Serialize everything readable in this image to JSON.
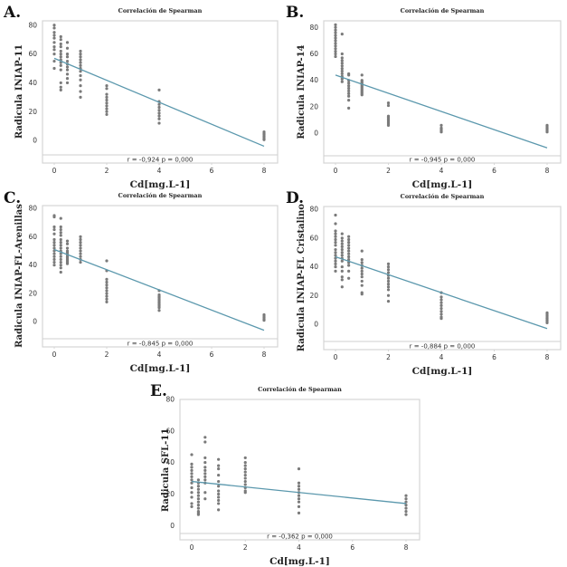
{
  "chart_data": [
    {
      "id": "A",
      "type": "scatter",
      "panel_label": "A.",
      "title": "Correlación de Spearman",
      "xlabel": "Cd[mg.L-1]",
      "ylabel": "Radicula INIAP-11",
      "xticks": [
        0,
        2,
        4,
        6,
        8
      ],
      "yticks": [
        0,
        20,
        40,
        60,
        80
      ],
      "xlim": [
        -0.35,
        8.35
      ],
      "ylim": [
        -10,
        83
      ],
      "statistic": "r = -0,924  p = 0,000",
      "fit_line": {
        "x": [
          0,
          8
        ],
        "y": [
          57,
          -4
        ]
      },
      "points": [
        {
          "x": 0,
          "y": [
            80,
            78,
            75,
            73,
            71,
            68,
            65,
            63,
            60,
            55,
            50
          ]
        },
        {
          "x": 0.25,
          "y": [
            72,
            70,
            67,
            65,
            62,
            60,
            58,
            56,
            54,
            52,
            49,
            40,
            37,
            35
          ]
        },
        {
          "x": 0.5,
          "y": [
            68,
            64,
            60,
            58,
            55,
            53,
            51,
            49,
            46,
            43,
            40
          ]
        },
        {
          "x": 1,
          "y": [
            62,
            60,
            58,
            56,
            54,
            52,
            50,
            48,
            45,
            42,
            38,
            34,
            30
          ]
        },
        {
          "x": 2,
          "y": [
            38,
            36,
            32,
            30,
            28,
            26,
            24,
            22,
            20,
            18
          ]
        },
        {
          "x": 4,
          "y": [
            35,
            27,
            25,
            23,
            21,
            19,
            17,
            15,
            12
          ]
        },
        {
          "x": 8,
          "y": [
            6,
            5,
            4,
            3,
            2,
            1,
            0.5
          ]
        }
      ]
    },
    {
      "id": "B",
      "type": "scatter",
      "panel_label": "B.",
      "title": "Correlación de Spearman",
      "xlabel": "Cd[mg.L-1]",
      "ylabel": "Radicula INIAP-14",
      "xticks": [
        0,
        2,
        4,
        6,
        8
      ],
      "yticks": [
        0,
        20,
        40,
        60,
        80
      ],
      "xlim": [
        -0.35,
        8.35
      ],
      "ylim": [
        -17,
        85
      ],
      "statistic": "r = -0,945  p = 0,000",
      "fit_line": {
        "x": [
          0,
          8
        ],
        "y": [
          44,
          -11
        ]
      },
      "points": [
        {
          "x": 0,
          "y": [
            82,
            80,
            78,
            76,
            74,
            72,
            70,
            68,
            66,
            64,
            62,
            60,
            58
          ]
        },
        {
          "x": 0.25,
          "y": [
            75,
            60,
            57,
            55,
            53,
            51,
            49,
            47,
            45,
            43,
            41,
            39
          ]
        },
        {
          "x": 0.5,
          "y": [
            45,
            44,
            40,
            38,
            36,
            34,
            32,
            30,
            28,
            25,
            19
          ]
        },
        {
          "x": 1,
          "y": [
            44,
            40,
            39,
            38,
            37,
            36,
            35,
            34,
            33,
            32,
            31,
            30,
            29
          ]
        },
        {
          "x": 2,
          "y": [
            23,
            21,
            13,
            12,
            11,
            10,
            9,
            8,
            7,
            6
          ]
        },
        {
          "x": 4,
          "y": [
            6,
            4,
            3,
            2,
            1
          ]
        },
        {
          "x": 8,
          "y": [
            6,
            5,
            4,
            3,
            2,
            1
          ]
        }
      ]
    },
    {
      "id": "C",
      "type": "scatter",
      "panel_label": "C.",
      "title": "Correlación de Spearman",
      "xlabel": "Cd[mg.L-1]",
      "ylabel": "Radicula INIAP-FL-Arenillas",
      "xticks": [
        0,
        2,
        4,
        6,
        8
      ],
      "yticks": [
        0,
        20,
        40,
        60,
        80
      ],
      "xlim": [
        -0.35,
        8.35
      ],
      "ylim": [
        -12,
        82
      ],
      "statistic": "r = -0,845  p = 0,000",
      "fit_line": {
        "x": [
          0,
          8
        ],
        "y": [
          51,
          -6
        ]
      },
      "points": [
        {
          "x": 0,
          "y": [
            75,
            74,
            67,
            65,
            62,
            58,
            56,
            54,
            52,
            50,
            48,
            46,
            44,
            42,
            40
          ]
        },
        {
          "x": 0.25,
          "y": [
            73,
            67,
            65,
            63,
            61,
            58,
            56,
            54,
            52,
            50,
            48,
            46,
            44,
            42,
            40,
            38,
            35
          ]
        },
        {
          "x": 0.5,
          "y": [
            57,
            55,
            52,
            50,
            49,
            48,
            47,
            46,
            45,
            44,
            43,
            42,
            41
          ]
        },
        {
          "x": 1,
          "y": [
            60,
            58,
            56,
            54,
            52,
            50,
            48,
            46,
            44,
            42
          ]
        },
        {
          "x": 2,
          "y": [
            43,
            36,
            30,
            28,
            26,
            24,
            22,
            20,
            18,
            16,
            14
          ]
        },
        {
          "x": 4,
          "y": [
            22,
            19,
            18,
            17,
            16,
            15,
            14,
            13,
            12,
            11,
            10,
            8
          ]
        },
        {
          "x": 8,
          "y": [
            5,
            4,
            3,
            2,
            1
          ]
        }
      ]
    },
    {
      "id": "D",
      "type": "scatter",
      "panel_label": "D.",
      "title": "Correlación de Spearman",
      "xlabel": "Cd[mg.L-1]",
      "ylabel": "Radicula INIAP-FL Cristalino",
      "xticks": [
        0,
        2,
        4,
        6,
        8
      ],
      "yticks": [
        0,
        20,
        40,
        60,
        80
      ],
      "xlim": [
        -0.35,
        8.35
      ],
      "ylim": [
        -12,
        82
      ],
      "statistic": "r = -0,884  p = 0,000",
      "fit_line": {
        "x": [
          0,
          8
        ],
        "y": [
          47,
          -3
        ]
      },
      "points": [
        {
          "x": 0,
          "y": [
            76,
            70,
            65,
            63,
            61,
            59,
            57,
            55,
            52,
            50,
            48,
            46,
            44,
            42,
            40,
            37
          ]
        },
        {
          "x": 0.25,
          "y": [
            63,
            60,
            58,
            56,
            54,
            52,
            50,
            48,
            46,
            44,
            40,
            37,
            33,
            31,
            26
          ]
        },
        {
          "x": 0.5,
          "y": [
            61,
            59,
            57,
            55,
            53,
            51,
            49,
            47,
            45,
            43,
            41,
            37,
            32
          ]
        },
        {
          "x": 1,
          "y": [
            51,
            45,
            43,
            41,
            39,
            37,
            35,
            33,
            30,
            27,
            22,
            21
          ]
        },
        {
          "x": 2,
          "y": [
            42,
            40,
            38,
            36,
            34,
            32,
            30,
            28,
            26,
            24,
            20,
            16
          ]
        },
        {
          "x": 4,
          "y": [
            22,
            19,
            17,
            15,
            13,
            11,
            9,
            7,
            5,
            4
          ]
        },
        {
          "x": 8,
          "y": [
            8,
            7,
            6,
            5,
            4,
            3,
            2,
            1
          ]
        }
      ]
    },
    {
      "id": "E",
      "type": "scatter",
      "panel_label": "E.",
      "title": "Correlación de Spearman",
      "xlabel": "Cd[mg.L-1]",
      "ylabel": "Radicula SFL-11",
      "xticks": [
        0,
        2,
        4,
        6,
        8
      ],
      "yticks": [
        0,
        20,
        40,
        60,
        80
      ],
      "xlim": [
        -0.35,
        8.35
      ],
      "ylim": [
        -5,
        80
      ],
      "statistic": "r = -0,362  p = 0,000",
      "fit_line": {
        "x": [
          0,
          8
        ],
        "y": [
          28,
          14
        ]
      },
      "points": [
        {
          "x": 0,
          "y": [
            45,
            39,
            37,
            35,
            33,
            31,
            29,
            27,
            24,
            21,
            18,
            14,
            12
          ]
        },
        {
          "x": 0.25,
          "y": [
            29,
            27,
            25,
            23,
            21,
            19,
            17,
            15,
            13,
            11,
            9,
            8,
            7
          ]
        },
        {
          "x": 0.5,
          "y": [
            56,
            53,
            43,
            40,
            37,
            35,
            33,
            31,
            29,
            27,
            21,
            17
          ]
        },
        {
          "x": 1,
          "y": [
            42,
            38,
            36,
            32,
            28,
            25,
            22,
            20,
            18,
            16,
            14,
            10
          ]
        },
        {
          "x": 2,
          "y": [
            43,
            40,
            38,
            36,
            34,
            32,
            30,
            28,
            26,
            24,
            22,
            21
          ]
        },
        {
          "x": 4,
          "y": [
            36,
            27,
            25,
            23,
            21,
            19,
            17,
            15,
            12,
            8
          ]
        },
        {
          "x": 8,
          "y": [
            19,
            17,
            15,
            13,
            11,
            9,
            7
          ]
        }
      ]
    }
  ]
}
